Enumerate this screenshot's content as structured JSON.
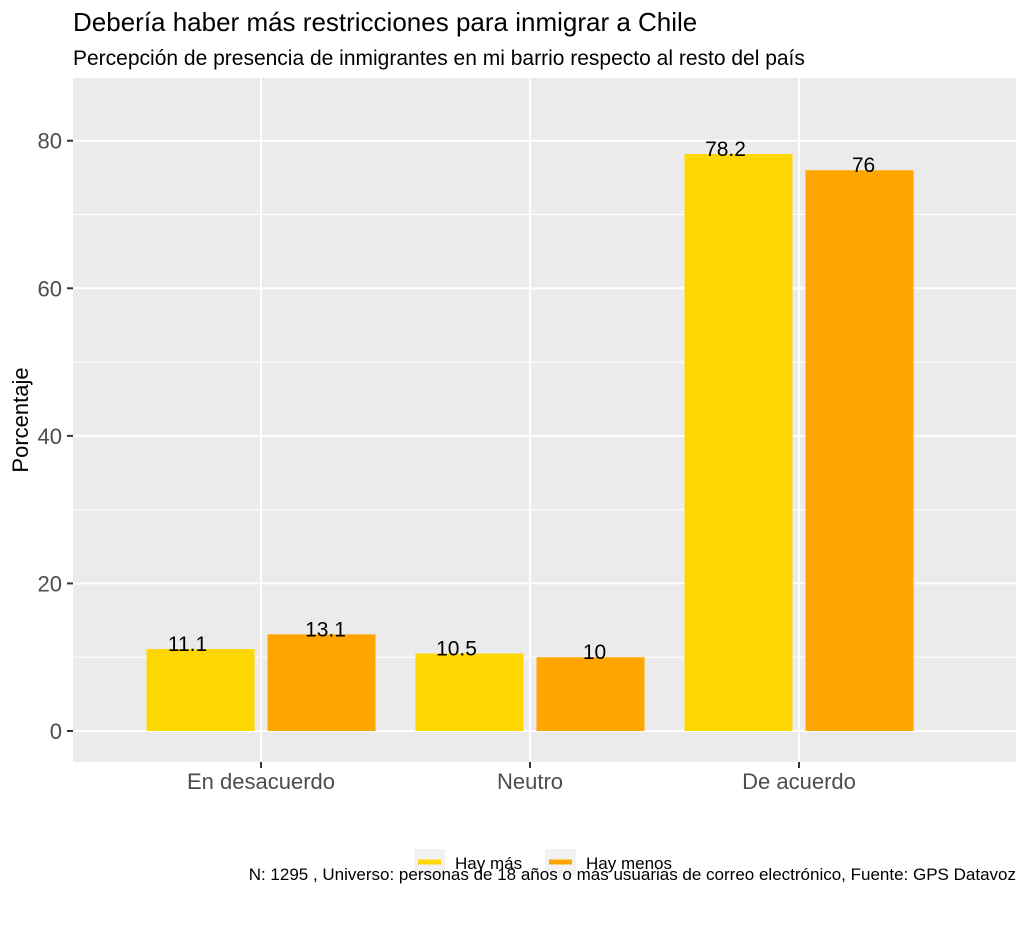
{
  "chart_data": {
    "type": "bar",
    "title": "Debería haber más restricciones para inmigrar a Chile",
    "subtitle": "Percepción de presencia de inmigrantes en mi barrio respecto al resto del país",
    "xlabel": "",
    "ylabel": "Porcentaje",
    "categories": [
      "En desacuerdo",
      "Neutro",
      "De acuerdo"
    ],
    "series": [
      {
        "name": "Hay más",
        "color": "#FFD700",
        "values": [
          11.1,
          10.5,
          78.2
        ],
        "labels": [
          "11.1",
          "10.5",
          "78.2"
        ]
      },
      {
        "name": "Hay menos",
        "color": "#FFA500",
        "values": [
          13.1,
          10,
          76
        ],
        "labels": [
          "13.1",
          "10",
          "76"
        ]
      }
    ],
    "ylim": [
      0,
      88.5
    ],
    "yticks": [
      0,
      20,
      40,
      60,
      80
    ],
    "ytick_labels": [
      "0",
      "20",
      "40",
      "60",
      "80"
    ],
    "grid": true,
    "legend_position": "bottom",
    "caption": "N: 1295 , Universo: personas de 18 años o más usuarias de correo electrónico, Fuente: GPS Datavoz"
  },
  "colors": {
    "panel_background": "#EBEBEB",
    "grid": "#FFFFFF",
    "text": "#000000",
    "axis_text": "#4D4D4D"
  }
}
